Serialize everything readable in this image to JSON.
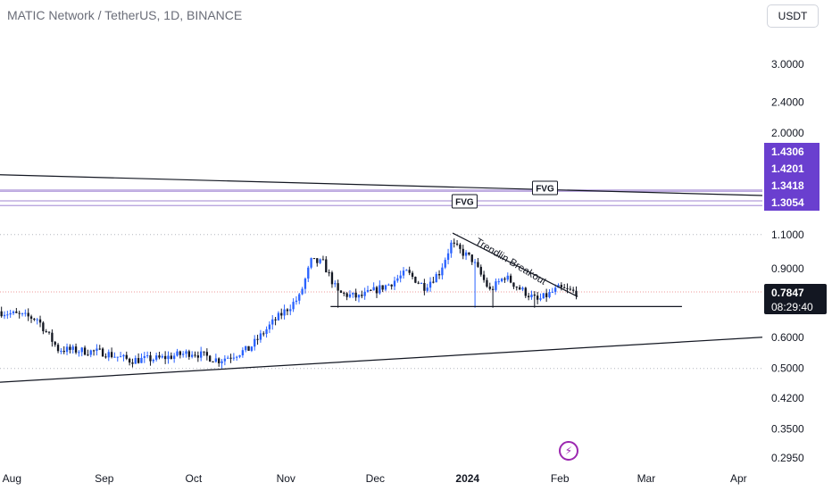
{
  "header": {
    "title": "MATIC Network / TetherUS, 1D, BINANCE",
    "currency_button": "USDT"
  },
  "colors": {
    "up": "#2962ff",
    "down": "#131722",
    "level_line": "#b39ddb",
    "level_badge": "#6a3fcf",
    "price_badge": "#131722",
    "grid_dotted": "#b2b5be",
    "trend": "#131722",
    "bolt": "#9c27b0"
  },
  "icons": {
    "bolt": "lightning-bolt-icon"
  },
  "chart_data": {
    "type": "candlestick",
    "scale": "log",
    "x_range": [
      "2023-07-28",
      "2024-04-09"
    ],
    "y_range": [
      0.2844,
      3.55
    ],
    "x_ticks": [
      {
        "label": "Aug",
        "date": "2023-08-01"
      },
      {
        "label": "Sep",
        "date": "2023-09-01"
      },
      {
        "label": "Oct",
        "date": "2023-10-01"
      },
      {
        "label": "Nov",
        "date": "2023-11-01"
      },
      {
        "label": "Dec",
        "date": "2023-12-01"
      },
      {
        "label": "2024",
        "date": "2024-01-01",
        "bold": true
      },
      {
        "label": "Feb",
        "date": "2024-02-01"
      },
      {
        "label": "Mar",
        "date": "2024-03-01"
      },
      {
        "label": "Apr",
        "date": "2024-04-01"
      }
    ],
    "y_ticks": [
      "3.0000",
      "2.4000",
      "2.0000",
      "1.1000",
      "0.9000",
      "0.6000",
      "0.5000",
      "0.4200",
      "0.3500",
      "0.2950"
    ],
    "dotted_levels": [
      1.1,
      0.5
    ],
    "levels": [
      {
        "value": 1.4306,
        "label": "1.4306"
      },
      {
        "value": 1.4201,
        "label": "1.4201"
      },
      {
        "value": 1.3418,
        "label": "1.3418"
      },
      {
        "value": 1.3054,
        "label": "1.3054"
      }
    ],
    "current_price": {
      "value": 0.7847,
      "label": "0.7847",
      "countdown": "08:29:40"
    },
    "annotations": {
      "fvg1": "FVG",
      "fvg2": "FVG",
      "breakout": "Trendlin Breakout"
    },
    "trend_lines": [
      {
        "name": "support-trendline",
        "p1": {
          "date": "2023-07-28",
          "price": 0.461
        },
        "p2": {
          "date": "2024-04-09",
          "price": 0.601
        }
      },
      {
        "name": "long-descending-line",
        "p1": {
          "date": "2023-07-28",
          "price": 1.565
        },
        "p2": {
          "date": "2024-04-09",
          "price": 1.385
        }
      },
      {
        "name": "descending-trendline",
        "p1": {
          "date": "2023-12-27",
          "price": 1.11
        },
        "p2": {
          "date": "2024-02-07",
          "price": 0.763
        }
      },
      {
        "name": "horizontal-support",
        "p1": {
          "date": "2023-11-16",
          "price": 0.72
        },
        "p2": {
          "date": "2024-03-13",
          "price": 0.72
        }
      }
    ],
    "anchors": [
      {
        "date": "2023-07-28",
        "price": 0.7
      },
      {
        "date": "2023-08-10",
        "price": 0.67
      },
      {
        "date": "2023-08-17",
        "price": 0.56
      },
      {
        "date": "2023-09-01",
        "price": 0.55
      },
      {
        "date": "2023-09-10",
        "price": 0.525
      },
      {
        "date": "2023-09-20",
        "price": 0.53
      },
      {
        "date": "2023-10-01",
        "price": 0.55
      },
      {
        "date": "2023-10-10",
        "price": 0.525
      },
      {
        "date": "2023-10-20",
        "price": 0.56
      },
      {
        "date": "2023-10-28",
        "price": 0.655
      },
      {
        "date": "2023-11-06",
        "price": 0.76
      },
      {
        "date": "2023-11-10",
        "price": 0.94
      },
      {
        "date": "2023-11-14",
        "price": 0.93
      },
      {
        "date": "2023-11-19",
        "price": 0.78
      },
      {
        "date": "2023-11-26",
        "price": 0.76
      },
      {
        "date": "2023-12-06",
        "price": 0.82
      },
      {
        "date": "2023-12-12",
        "price": 0.88
      },
      {
        "date": "2023-12-18",
        "price": 0.81
      },
      {
        "date": "2023-12-23",
        "price": 0.88
      },
      {
        "date": "2023-12-27",
        "price": 1.04
      },
      {
        "date": "2024-01-03",
        "price": 0.95
      },
      {
        "date": "2024-01-09",
        "price": 0.79
      },
      {
        "date": "2024-01-14",
        "price": 0.86
      },
      {
        "date": "2024-01-19",
        "price": 0.8
      },
      {
        "date": "2024-01-25",
        "price": 0.745
      },
      {
        "date": "2024-02-01",
        "price": 0.8
      },
      {
        "date": "2024-02-06",
        "price": 0.785
      }
    ]
  }
}
